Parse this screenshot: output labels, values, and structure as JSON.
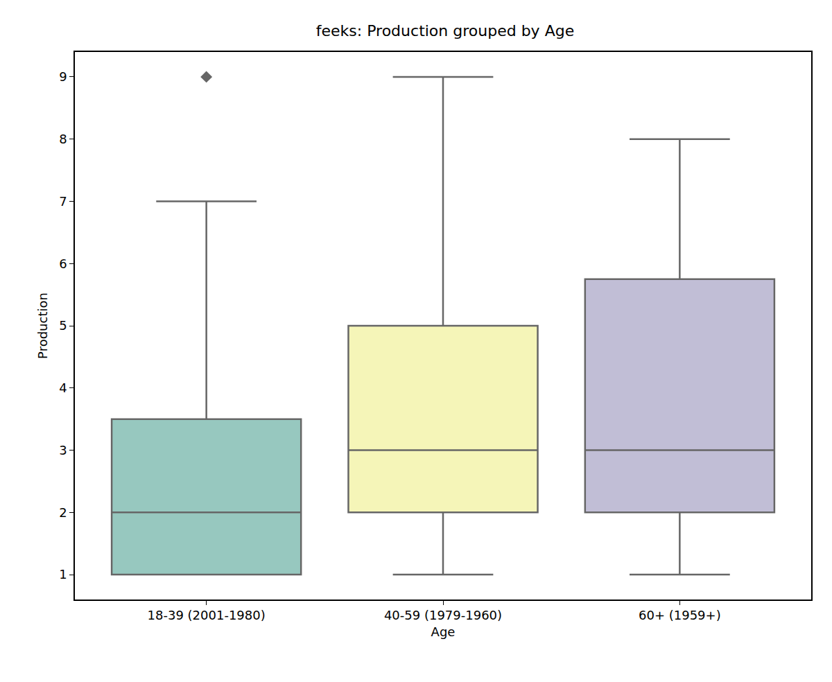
{
  "chart_data": {
    "type": "box",
    "title": "feeks: Production grouped by Age",
    "x_label": "Age",
    "y_label": "Production",
    "categories": [
      "18-39 (2001-1980)",
      "40-59 (1979-1960)",
      "60+ (1959+)"
    ],
    "q1": [
      1,
      2,
      2
    ],
    "median": [
      2,
      3,
      3
    ],
    "q3": [
      3.5,
      5,
      5.75
    ],
    "whisker_low": [
      1,
      1,
      1
    ],
    "whisker_high": [
      7,
      9,
      8
    ],
    "outliers": [
      [
        9
      ],
      [],
      []
    ],
    "colors": [
      "#97c8bf",
      "#f5f5b8",
      "#c1bed6"
    ],
    "marker": "diamond",
    "ylim": [
      0.6,
      9.4
    ],
    "yticks": [
      1,
      2,
      3,
      4,
      5,
      6,
      7,
      8,
      9
    ],
    "grid": false
  }
}
